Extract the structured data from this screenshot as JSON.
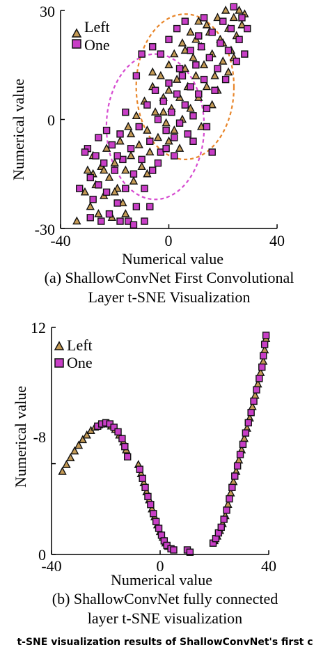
{
  "colors": {
    "left_marker_fill": "#c49a55",
    "one_marker_fill": "#c83ec6",
    "marker_stroke": "#111111",
    "orange_ellipse": "#e8862b",
    "magenta_ellipse": "#d64bd0"
  },
  "chart_data": [
    {
      "type": "scatter",
      "title": "",
      "caption_line1": "(a) ShallowConvNet First Convolutional",
      "caption_line2": "Layer t-SNE Visualization",
      "xlabel": "Numerical value",
      "ylabel": "Numerical value",
      "xlim": [
        -40,
        40
      ],
      "ylim": [
        -30,
        30
      ],
      "xticks": [
        -40,
        0,
        40
      ],
      "yticks": [
        -30,
        0,
        30
      ],
      "grid": false,
      "legend_position": "top-left",
      "series": [
        {
          "name": "Left",
          "marker": "triangle",
          "points": [
            [
              -34,
              -28
            ],
            [
              -31,
              -20
            ],
            [
              -30,
              -14
            ],
            [
              -29,
              -24
            ],
            [
              -28,
              -10
            ],
            [
              -27,
              -18
            ],
            [
              -26,
              -26
            ],
            [
              -25,
              -13
            ],
            [
              -24,
              -21
            ],
            [
              -23,
              -8
            ],
            [
              -22,
              -16
            ],
            [
              -21,
              -27
            ],
            [
              -20,
              -12
            ],
            [
              -19,
              -19
            ],
            [
              -18,
              -6
            ],
            [
              -17,
              -23
            ],
            [
              -16,
              -14
            ],
            [
              -15,
              -2
            ],
            [
              -14,
              -10
            ],
            [
              -13,
              -17
            ],
            [
              -12,
              1
            ],
            [
              -11,
              -7
            ],
            [
              -10,
              -13
            ],
            [
              -9,
              5
            ],
            [
              -8,
              -3
            ],
            [
              -7,
              -9
            ],
            [
              -6,
              9
            ],
            [
              -5,
              2
            ],
            [
              -4,
              -5
            ],
            [
              -3,
              12
            ],
            [
              -2,
              6
            ],
            [
              -1,
              -1
            ],
            [
              0,
              15
            ],
            [
              0,
              8
            ],
            [
              1,
              3
            ],
            [
              2,
              -3
            ],
            [
              2,
              18
            ],
            [
              3,
              11
            ],
            [
              4,
              6
            ],
            [
              5,
              0
            ],
            [
              5,
              21
            ],
            [
              6,
              14
            ],
            [
              7,
              9
            ],
            [
              8,
              3
            ],
            [
              8,
              24
            ],
            [
              9,
              17
            ],
            [
              10,
              12
            ],
            [
              11,
              6
            ],
            [
              11,
              27
            ],
            [
              12,
              20
            ],
            [
              13,
              15
            ],
            [
              14,
              9
            ],
            [
              15,
              24
            ],
            [
              16,
              18
            ],
            [
              17,
              12
            ],
            [
              18,
              28
            ],
            [
              19,
              22
            ],
            [
              20,
              16
            ],
            [
              21,
              30
            ],
            [
              22,
              25
            ],
            [
              23,
              19
            ],
            [
              24,
              28
            ],
            [
              25,
              23
            ],
            [
              26,
              30
            ],
            [
              27,
              26
            ],
            [
              28,
              29
            ],
            [
              10,
              22
            ],
            [
              6,
              19
            ],
            [
              14,
              26
            ],
            [
              20,
              21
            ],
            [
              -6,
              13
            ],
            [
              -2,
              2
            ],
            [
              4,
              -8
            ],
            [
              -14,
              -4
            ],
            [
              -20,
              -20
            ],
            [
              -24,
              -14
            ],
            [
              16,
              4
            ],
            [
              12,
              -2
            ],
            [
              0,
              -6
            ],
            [
              -8,
              -15
            ],
            [
              18,
              8
            ],
            [
              22,
              13
            ],
            [
              24,
              17
            ],
            [
              -16,
              -26
            ],
            [
              -28,
              -15
            ]
          ]
        },
        {
          "name": "One",
          "marker": "square",
          "points": [
            [
              -30,
              -8
            ],
            [
              -29,
              -16
            ],
            [
              -28,
              -22
            ],
            [
              -27,
              -10
            ],
            [
              -26,
              -18
            ],
            [
              -25,
              -28
            ],
            [
              -24,
              -12
            ],
            [
              -23,
              -20
            ],
            [
              -22,
              -26
            ],
            [
              -21,
              -7
            ],
            [
              -20,
              -14
            ],
            [
              -19,
              -23
            ],
            [
              -18,
              -4
            ],
            [
              -17,
              -11
            ],
            [
              -16,
              -19
            ],
            [
              -15,
              -28
            ],
            [
              -14,
              -8
            ],
            [
              -13,
              -15
            ],
            [
              -12,
              -24
            ],
            [
              -11,
              -2
            ],
            [
              -10,
              -11
            ],
            [
              -9,
              -19
            ],
            [
              -8,
              4
            ],
            [
              -7,
              -6
            ],
            [
              -6,
              -14
            ],
            [
              -5,
              8
            ],
            [
              -4,
              0
            ],
            [
              -3,
              -9
            ],
            [
              -2,
              5
            ],
            [
              -1,
              -3
            ],
            [
              0,
              10
            ],
            [
              1,
              2
            ],
            [
              2,
              -5
            ],
            [
              3,
              7
            ],
            [
              4,
              -1
            ],
            [
              5,
              12
            ],
            [
              6,
              4
            ],
            [
              7,
              -4
            ],
            [
              8,
              9
            ],
            [
              9,
              1
            ],
            [
              10,
              15
            ],
            [
              11,
              7
            ],
            [
              12,
              20
            ],
            [
              13,
              11
            ],
            [
              14,
              3
            ],
            [
              15,
              17
            ],
            [
              16,
              24
            ],
            [
              17,
              8
            ],
            [
              18,
              14
            ],
            [
              19,
              21
            ],
            [
              20,
              27
            ],
            [
              21,
              11
            ],
            [
              22,
              19
            ],
            [
              23,
              25
            ],
            [
              24,
              31
            ],
            [
              25,
              16
            ],
            [
              26,
              22
            ],
            [
              27,
              28
            ],
            [
              28,
              18
            ],
            [
              29,
              25
            ],
            [
              -12,
              12
            ],
            [
              -10,
              18
            ],
            [
              -6,
              20
            ],
            [
              -3,
              18
            ],
            [
              0,
              22
            ],
            [
              3,
              25
            ],
            [
              6,
              27
            ],
            [
              -7,
              -24
            ],
            [
              -9,
              -28
            ],
            [
              -4,
              -12
            ],
            [
              -1,
              -8
            ],
            [
              2,
              -10
            ],
            [
              9,
              -6
            ],
            [
              14,
              -2
            ],
            [
              16,
              -9
            ],
            [
              -16,
              2
            ],
            [
              -19,
              -10
            ],
            [
              -23,
              -3
            ],
            [
              -26,
              -5
            ],
            [
              -29,
              -27
            ],
            [
              -33,
              -19
            ],
            [
              -31,
              -9
            ],
            [
              -18,
              -28
            ],
            [
              -13,
              -29
            ],
            [
              4,
              14
            ],
            [
              8,
              19
            ],
            [
              11,
              23
            ],
            [
              13,
              28
            ]
          ]
        }
      ],
      "annotations": [
        {
          "shape": "dashed-ellipse",
          "color": "orange",
          "cx": 6,
          "cy": 9,
          "rx": 19,
          "ry": 20
        },
        {
          "shape": "dashed-ellipse",
          "color": "magenta",
          "cx": -5,
          "cy": -2,
          "rx": 19,
          "ry": 20
        }
      ]
    },
    {
      "type": "scatter",
      "title": "",
      "caption_line1": "(b) ShallowConvNet fully connected",
      "caption_line2": "layer t-SNE visualization",
      "xlabel": "Numerical value",
      "ylabel": "Numerical value",
      "xlim": [
        -40,
        40
      ],
      "ylim": [
        -8,
        12
      ],
      "xticks": [
        -40,
        0,
        40
      ],
      "yticks": [
        -8,
        0,
        12
      ],
      "grid": false,
      "legend_position": "top-left",
      "series": [
        {
          "name": "Left",
          "marker": "triangle",
          "points": [
            [
              -36,
              -0.7
            ],
            [
              -34.5,
              -0.1
            ],
            [
              -33,
              0.5
            ],
            [
              -31.5,
              1.1
            ],
            [
              -30,
              1.6
            ],
            [
              -28.5,
              2.1
            ],
            [
              -27,
              2.5
            ],
            [
              -25.5,
              2.9
            ],
            [
              -24,
              3.2
            ],
            [
              -22.5,
              3.4
            ],
            [
              -21,
              3.5
            ],
            [
              -19.5,
              3.5
            ],
            [
              -18,
              3.3
            ],
            [
              -16.5,
              3.0
            ],
            [
              -15,
              2.5
            ],
            [
              -13.5,
              1.9
            ],
            [
              -12.5,
              1.2
            ],
            [
              -8,
              -0.1
            ],
            [
              -7,
              -0.9
            ],
            [
              -6,
              -1.7
            ],
            [
              -5,
              -2.5
            ],
            [
              -4,
              -3.2
            ],
            [
              -3,
              -4.0
            ],
            [
              -2,
              -4.7
            ],
            [
              -1,
              -5.4
            ],
            [
              0,
              -6.0
            ],
            [
              1,
              -6.5
            ],
            [
              2,
              -7.0
            ],
            [
              3,
              -7.3
            ],
            [
              20,
              -6.8
            ],
            [
              21,
              -6.4
            ],
            [
              22,
              -5.9
            ],
            [
              23,
              -5.3
            ],
            [
              24,
              -4.6
            ],
            [
              25,
              -3.6
            ],
            [
              26,
              -2.6
            ],
            [
              27,
              -1.6
            ],
            [
              28,
              -0.7
            ],
            [
              29,
              0.3
            ],
            [
              30,
              1.2
            ],
            [
              31,
              2.2
            ],
            [
              32,
              3.1
            ],
            [
              33,
              4.0
            ],
            [
              34,
              5.0
            ],
            [
              35,
              6.0
            ],
            [
              36,
              7.0
            ],
            [
              37,
              8.0
            ],
            [
              38,
              9.0
            ],
            [
              38.5,
              10.0
            ],
            [
              39,
              11.0
            ]
          ]
        },
        {
          "name": "One",
          "marker": "square",
          "points": [
            [
              -23,
              3.3
            ],
            [
              -21.5,
              3.5
            ],
            [
              -20,
              3.6
            ],
            [
              -18.5,
              3.5
            ],
            [
              -17,
              3.2
            ],
            [
              -15.5,
              2.8
            ],
            [
              -14,
              2.2
            ],
            [
              -13,
              1.5
            ],
            [
              -12,
              0.6
            ],
            [
              -7.5,
              -0.5
            ],
            [
              -6.5,
              -1.3
            ],
            [
              -5.5,
              -2.1
            ],
            [
              -4.5,
              -2.9
            ],
            [
              -3.5,
              -3.6
            ],
            [
              -2.5,
              -4.4
            ],
            [
              -1.5,
              -5.1
            ],
            [
              -0.5,
              -5.7
            ],
            [
              0.5,
              -6.3
            ],
            [
              1.5,
              -6.8
            ],
            [
              2.5,
              -7.2
            ],
            [
              4,
              -7.5
            ],
            [
              5,
              -7.6
            ],
            [
              10,
              -7.6
            ],
            [
              11,
              -7.8
            ],
            [
              19.5,
              -7.0
            ],
            [
              20.5,
              -6.6
            ],
            [
              21.5,
              -6.1
            ],
            [
              22.5,
              -5.6
            ],
            [
              23.5,
              -4.9
            ],
            [
              24.5,
              -4.1
            ],
            [
              25.5,
              -3.1
            ],
            [
              26.5,
              -2.1
            ],
            [
              27.5,
              -1.1
            ],
            [
              28.5,
              -0.2
            ],
            [
              29.5,
              0.8
            ],
            [
              30.5,
              1.7
            ],
            [
              31.5,
              2.7
            ],
            [
              32.5,
              3.6
            ],
            [
              33.5,
              4.5
            ],
            [
              34.5,
              5.5
            ],
            [
              35.5,
              6.5
            ],
            [
              36.5,
              7.5
            ],
            [
              37.5,
              8.5
            ],
            [
              38,
              9.5
            ],
            [
              38.5,
              10.5
            ],
            [
              39,
              11.3
            ]
          ]
        }
      ],
      "annotations": []
    }
  ],
  "footer_text": "t-SNE visualization results of ShallowConvNet's first c"
}
